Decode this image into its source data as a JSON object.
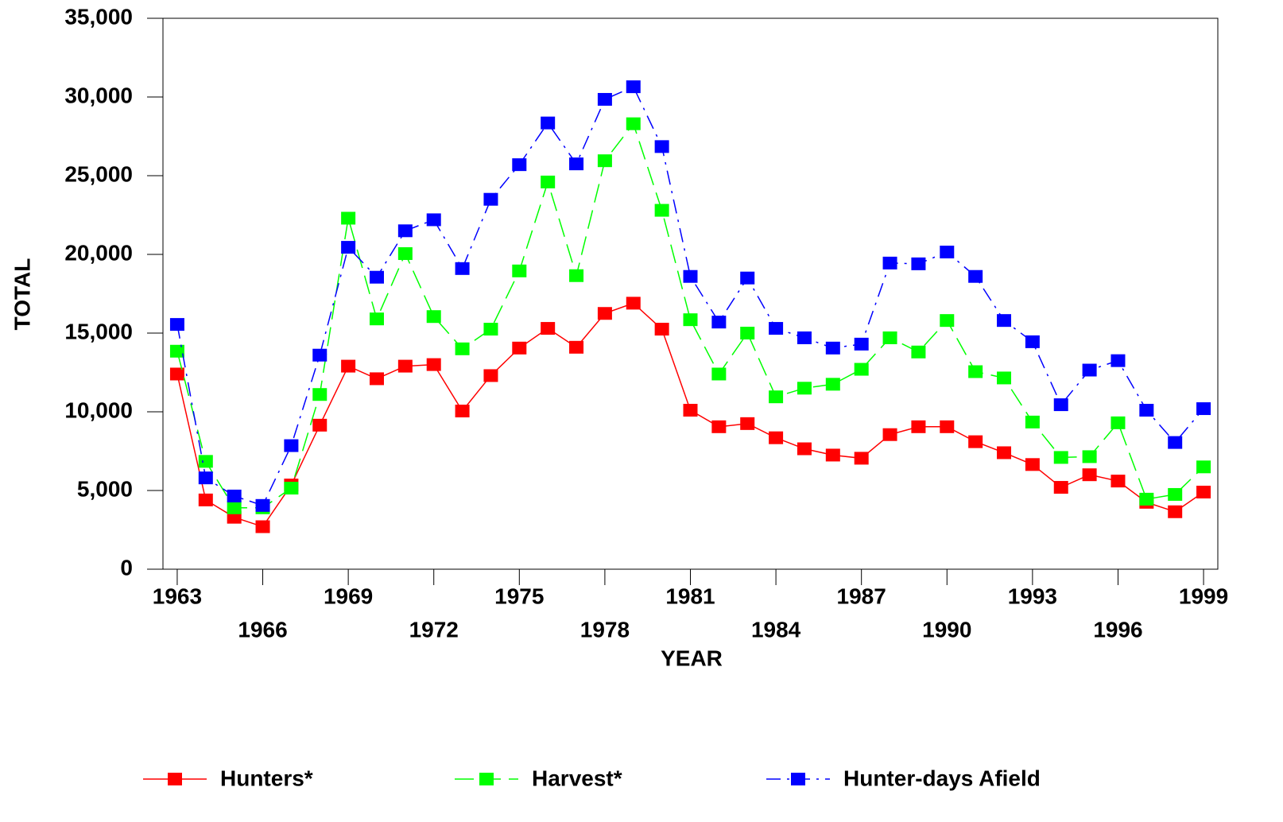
{
  "chart_data": {
    "type": "line",
    "x_label": "YEAR",
    "y_label": "TOTAL",
    "x": [
      1963,
      1964,
      1965,
      1966,
      1967,
      1968,
      1969,
      1970,
      1971,
      1972,
      1973,
      1974,
      1975,
      1976,
      1977,
      1978,
      1979,
      1980,
      1981,
      1982,
      1983,
      1984,
      1985,
      1986,
      1987,
      1988,
      1989,
      1990,
      1991,
      1992,
      1993,
      1994,
      1995,
      1996,
      1997,
      1998,
      1999
    ],
    "xlim": [
      1962.5,
      1999.5
    ],
    "xticks": [
      1963,
      1966,
      1969,
      1972,
      1975,
      1978,
      1981,
      1984,
      1987,
      1990,
      1993,
      1996,
      1999
    ],
    "ylim": [
      0,
      35000
    ],
    "yticks": [
      0,
      {
        "value": 5000,
        "label": "5,000"
      },
      {
        "value": 10000,
        "label": "10,000"
      },
      {
        "value": 15000,
        "label": "15,000"
      },
      {
        "value": 20000,
        "label": "20,000"
      },
      {
        "value": 25000,
        "label": "25,000"
      },
      {
        "value": 30000,
        "label": "30,000"
      },
      {
        "value": 35000,
        "label": "35,000"
      }
    ],
    "legend": "bottom",
    "series": [
      {
        "name": "Hunters*",
        "color": "#ff0000",
        "line_style": "solid",
        "values": [
          12400,
          4400,
          3300,
          2700,
          5350,
          9150,
          12900,
          12100,
          12900,
          13000,
          10050,
          12300,
          14050,
          15300,
          14100,
          16250,
          16900,
          15250,
          10100,
          9050,
          9250,
          8350,
          7650,
          7250,
          7050,
          8550,
          9050,
          9050,
          8100,
          7400,
          6650,
          5200,
          6000,
          5600,
          4250,
          3650,
          4900
        ]
      },
      {
        "name": "Harvest*",
        "color": "#00ff00",
        "line_style": "dashed",
        "values": [
          13850,
          6850,
          3900,
          3900,
          5150,
          11100,
          22300,
          15900,
          20050,
          16050,
          14000,
          15250,
          18950,
          24600,
          18650,
          25950,
          28300,
          22800,
          15850,
          12400,
          15000,
          10950,
          11500,
          11750,
          12700,
          14700,
          13800,
          15800,
          12550,
          12150,
          9350,
          7100,
          7150,
          9300,
          4450,
          4750,
          6500
        ]
      },
      {
        "name": "Hunter-days Afield",
        "color": "#0000ff",
        "line_style": "dashdot",
        "values": [
          15550,
          5800,
          4650,
          4050,
          7850,
          13600,
          20450,
          18550,
          21500,
          22200,
          19100,
          23500,
          25700,
          28350,
          25750,
          29850,
          30650,
          26850,
          18600,
          15700,
          18500,
          15300,
          14700,
          14050,
          14300,
          19450,
          19400,
          20150,
          18600,
          15800,
          14450,
          10450,
          12650,
          13250,
          10100,
          8050,
          10200
        ]
      }
    ]
  }
}
